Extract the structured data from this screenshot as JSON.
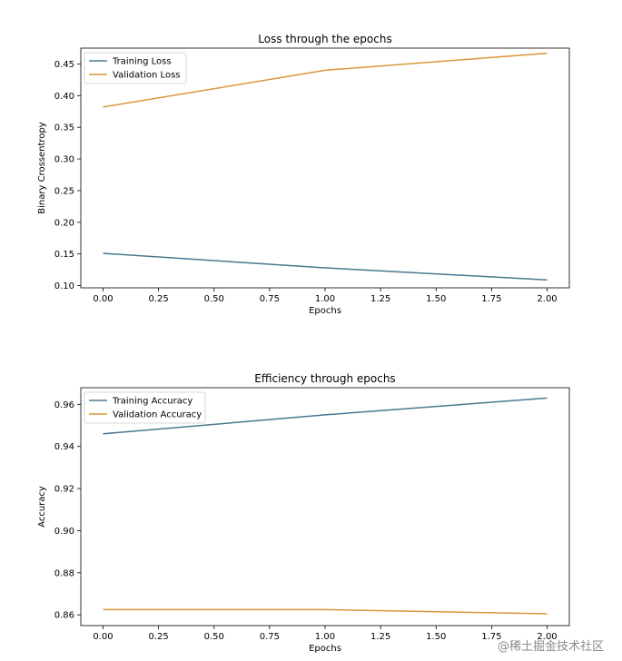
{
  "chart_data": [
    {
      "type": "line",
      "title": "Loss through the epochs",
      "xlabel": "Epochs",
      "ylabel": "Binary Crossentropy",
      "xlim": [
        -0.1,
        2.1
      ],
      "ylim": [
        0.0965,
        0.475
      ],
      "xticks": [
        "0.00",
        "0.25",
        "0.50",
        "0.75",
        "1.00",
        "1.25",
        "1.50",
        "1.75",
        "2.00"
      ],
      "yticks": [
        "0.10",
        "0.15",
        "0.20",
        "0.25",
        "0.30",
        "0.35",
        "0.40",
        "0.45"
      ],
      "legend_position": "top-left",
      "grid": false,
      "x": [
        0,
        1,
        2
      ],
      "series": [
        {
          "name": "Training Loss",
          "color": "#4a7890",
          "values": [
            0.151,
            0.128,
            0.109
          ]
        },
        {
          "name": "Validation Loss",
          "color": "#d9963c",
          "values": [
            0.382,
            0.44,
            0.467
          ]
        }
      ]
    },
    {
      "type": "line",
      "title": "Efficiency through epochs",
      "xlabel": "Epochs",
      "ylabel": "Accuracy",
      "xlim": [
        -0.1,
        2.1
      ],
      "ylim": [
        0.8549,
        0.9679
      ],
      "xticks": [
        "0.00",
        "0.25",
        "0.50",
        "0.75",
        "1.00",
        "1.25",
        "1.50",
        "1.75",
        "2.00"
      ],
      "yticks": [
        "0.86",
        "0.88",
        "0.90",
        "0.92",
        "0.94",
        "0.96"
      ],
      "legend_position": "top-left",
      "grid": false,
      "x": [
        0,
        1,
        2
      ],
      "series": [
        {
          "name": "Training Accuracy",
          "color": "#4a7890",
          "values": [
            0.946,
            0.955,
            0.963
          ]
        },
        {
          "name": "Validation Accuracy",
          "color": "#d9963c",
          "values": [
            0.8625,
            0.8625,
            0.8605
          ]
        }
      ]
    }
  ],
  "watermark": "@稀土掘金技术社区"
}
